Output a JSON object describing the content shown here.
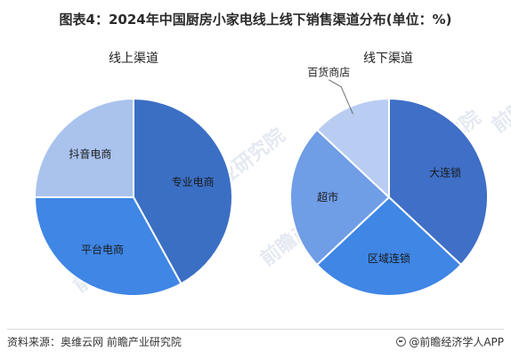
{
  "header": {
    "title": "图表4：2024年中国厨房小家电线上线下销售渠道分布(单位：%)"
  },
  "footer": {
    "source": "资料来源：奥维云网 前瞻产业研究院",
    "brand": "@前瞻经济学人APP"
  },
  "watermark": {
    "text": "前瞻产业研究院"
  },
  "colors": {
    "dark_blue": "#3B6FC4",
    "mid_blue": "#3F86E5",
    "light_blue": "#A9C3ED",
    "steel_blue": "#5C8FE0",
    "pale_blue": "#B9CDF2"
  },
  "chart_data": [
    {
      "type": "pie",
      "title": "线上渠道",
      "start_angle_deg": 0,
      "slices": [
        {
          "label": "专业电商",
          "value": 42,
          "color": "#3B6FC4"
        },
        {
          "label": "平台电商",
          "value": 33,
          "color": "#3F86E5"
        },
        {
          "label": "抖音电商",
          "value": 25,
          "color": "#A9C3ED"
        }
      ]
    },
    {
      "type": "pie",
      "title": "线下渠道",
      "start_angle_deg": 0,
      "slices": [
        {
          "label": "大连锁",
          "value": 37,
          "color": "#3F6FC6"
        },
        {
          "label": "区域连锁",
          "value": 26,
          "color": "#3F86E5"
        },
        {
          "label": "超市",
          "value": 24,
          "color": "#6F9DE6"
        },
        {
          "label": "百货商店",
          "value": 13,
          "color": "#B9CDF2"
        }
      ]
    }
  ]
}
